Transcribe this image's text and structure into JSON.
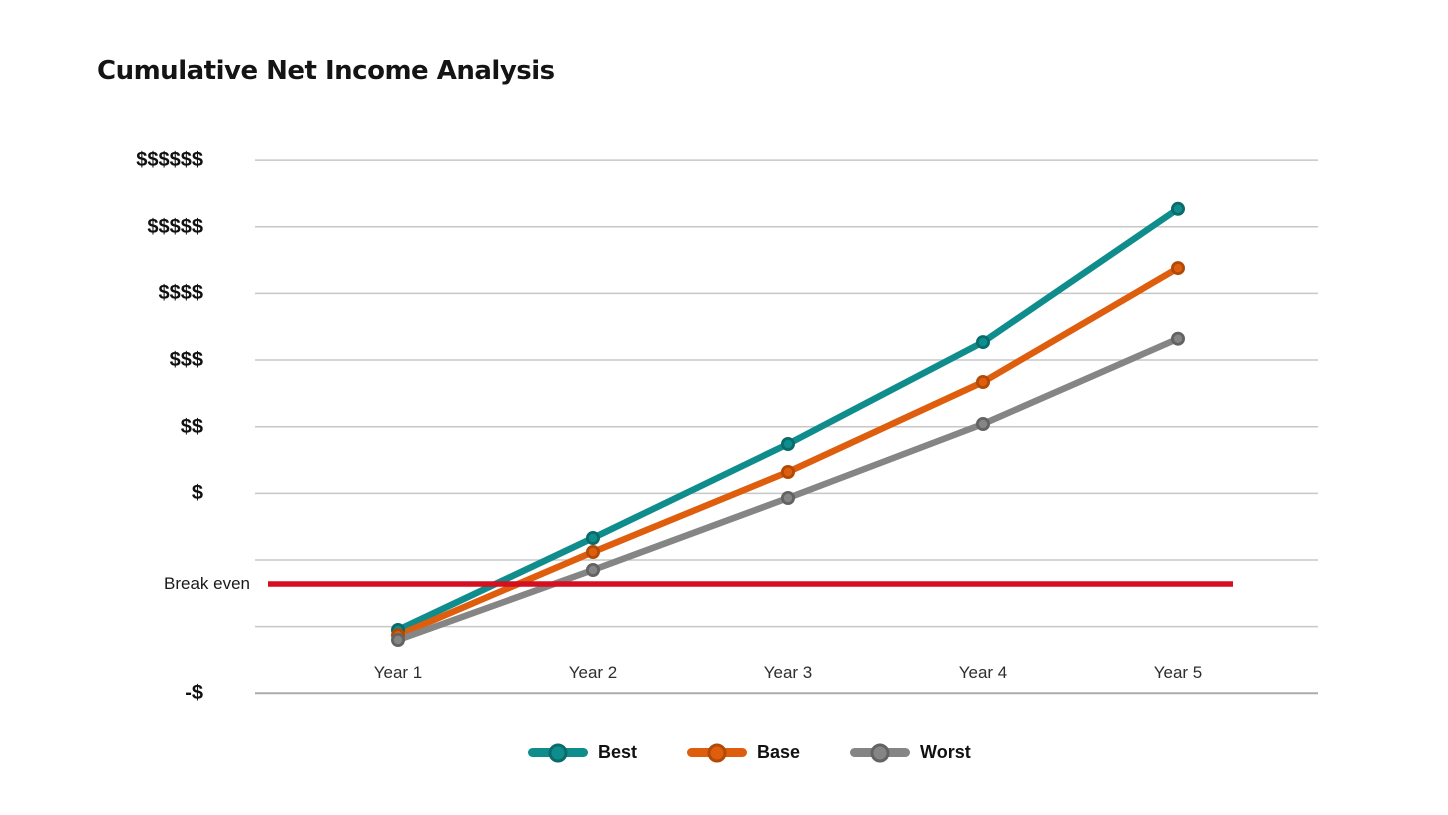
{
  "chart_data": {
    "type": "line",
    "title": "Cumulative Net Income Analysis",
    "xlabel": "",
    "ylabel": "",
    "background_color": "#FFFFFF",
    "grid": "horizontal",
    "gridline_color": "#C7C7C7",
    "x_categories": [
      "Year 1",
      "Year 2",
      "Year 3",
      "Year 4",
      "Year 5"
    ],
    "y_axis": {
      "note": "ordinal dollar scale; 1 unit per gridline, 0 = blank gridline below $",
      "ticks": [
        {
          "label": "$$$$$$",
          "value": 6
        },
        {
          "label": "$$$$$",
          "value": 5
        },
        {
          "label": "$$$$",
          "value": 4
        },
        {
          "label": "$$$",
          "value": 3
        },
        {
          "label": "$$",
          "value": 2
        },
        {
          "label": "$",
          "value": 1
        },
        {
          "label": "-$",
          "value": -2
        }
      ],
      "gridline_values": [
        6,
        5,
        4,
        3,
        2,
        1,
        0,
        -1,
        -2
      ],
      "ylim": [
        -2.5,
        6
      ]
    },
    "series": [
      {
        "name": "Best",
        "color": "#0F8C8C",
        "marker_edge": "#0A6B6B",
        "values": [
          -1.05,
          0.33,
          1.74,
          3.27,
          5.27
        ]
      },
      {
        "name": "Base",
        "color": "#DE5E0D",
        "marker_edge": "#B14A06",
        "values": [
          -1.13,
          0.12,
          1.32,
          2.67,
          4.38
        ]
      },
      {
        "name": "Worst",
        "color": "#858585",
        "marker_edge": "#636363",
        "values": [
          -1.2,
          -0.15,
          0.93,
          2.04,
          3.32
        ]
      }
    ],
    "reference_line": {
      "label": "Break even",
      "value": -0.36,
      "color": "#D40F20"
    },
    "legend": {
      "position": "bottom",
      "entries": [
        "Best",
        "Base",
        "Worst"
      ]
    }
  }
}
